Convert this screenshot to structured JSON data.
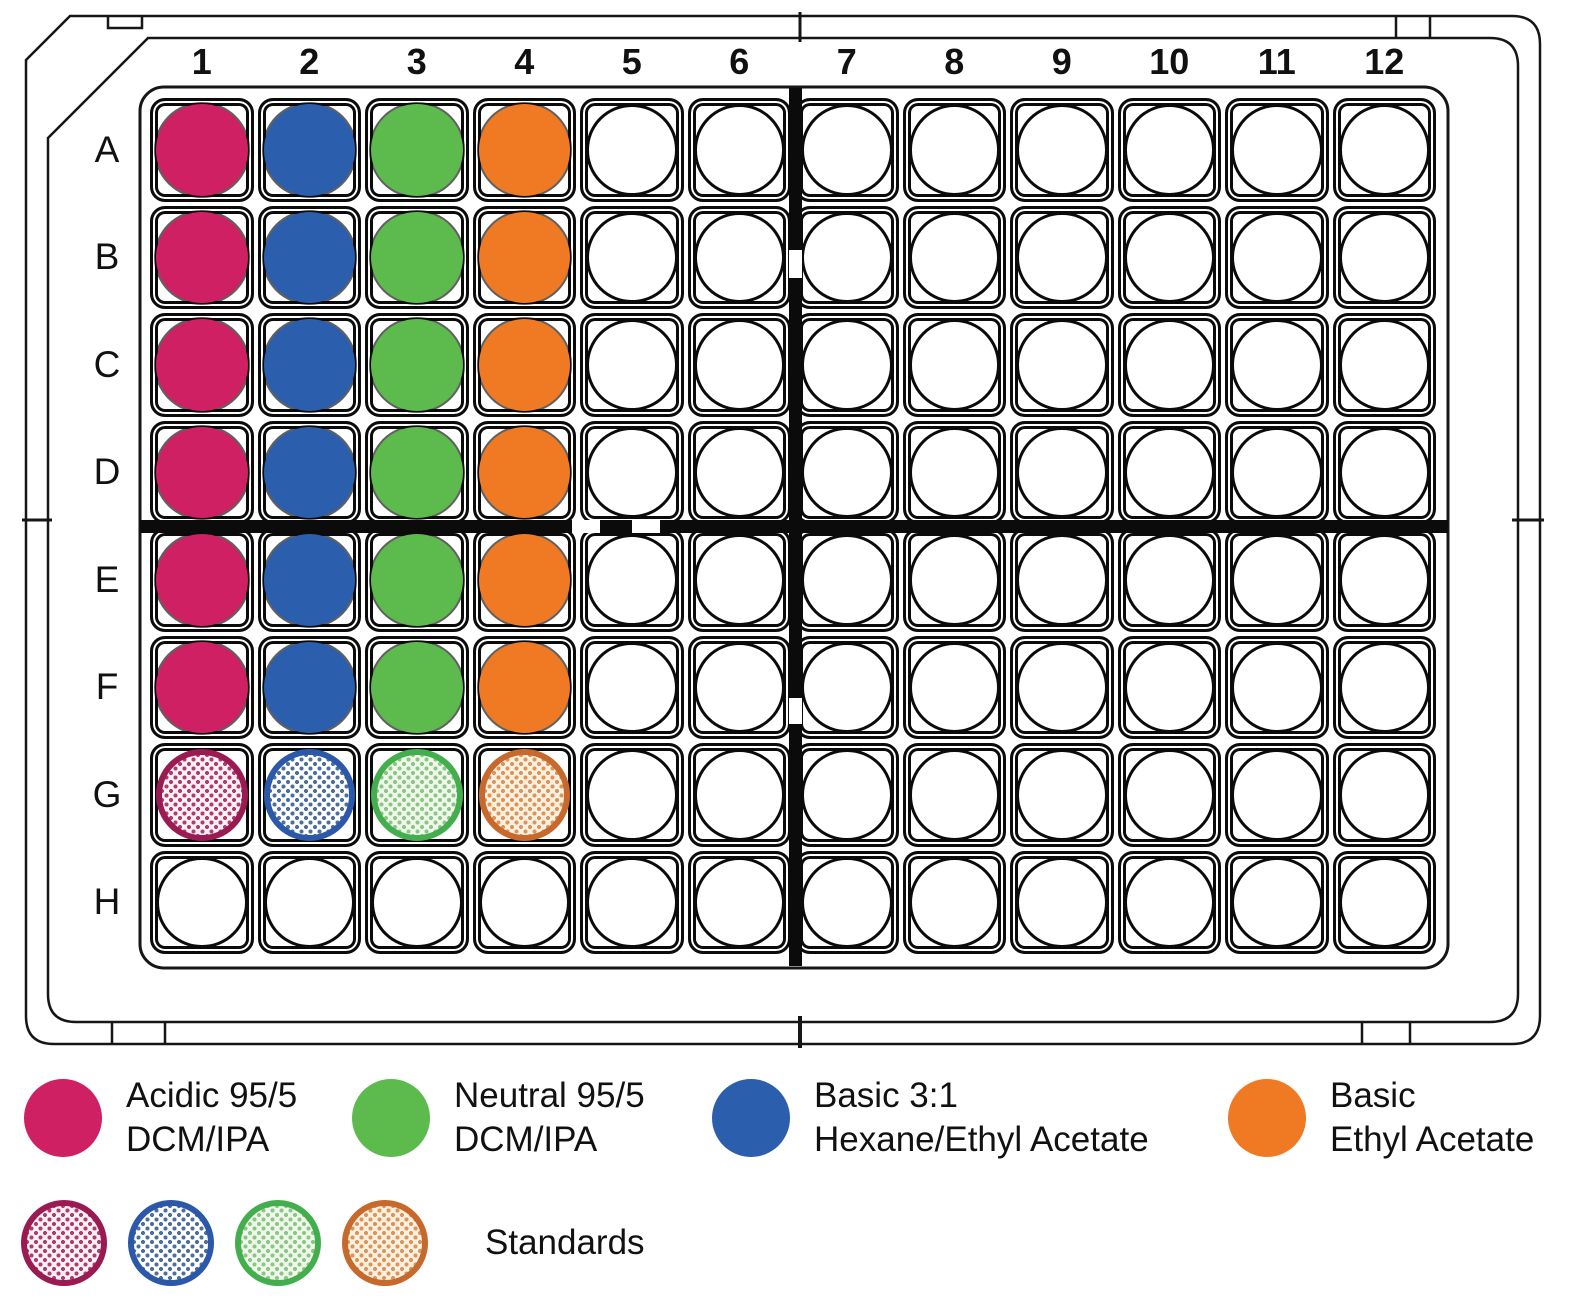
{
  "plate": {
    "columns": [
      "1",
      "2",
      "3",
      "4",
      "5",
      "6",
      "7",
      "8",
      "9",
      "10",
      "11",
      "12"
    ],
    "rows": [
      "A",
      "B",
      "C",
      "D",
      "E",
      "F",
      "G",
      "H"
    ],
    "well_fills": [
      {
        "rows": [
          "A",
          "B",
          "C",
          "D",
          "E",
          "F"
        ],
        "cols": [
          "1"
        ],
        "style": "solid",
        "color_key": "acidic"
      },
      {
        "rows": [
          "A",
          "B",
          "C",
          "D",
          "E",
          "F"
        ],
        "cols": [
          "2"
        ],
        "style": "solid",
        "color_key": "basic_hexane"
      },
      {
        "rows": [
          "A",
          "B",
          "C",
          "D",
          "E",
          "F"
        ],
        "cols": [
          "3"
        ],
        "style": "solid",
        "color_key": "neutral"
      },
      {
        "rows": [
          "A",
          "B",
          "C",
          "D",
          "E",
          "F"
        ],
        "cols": [
          "4"
        ],
        "style": "solid",
        "color_key": "basic_ethyl"
      },
      {
        "rows": [
          "G"
        ],
        "cols": [
          "1"
        ],
        "style": "hatched",
        "color_key": "acidic"
      },
      {
        "rows": [
          "G"
        ],
        "cols": [
          "2"
        ],
        "style": "hatched",
        "color_key": "basic_hexane"
      },
      {
        "rows": [
          "G"
        ],
        "cols": [
          "3"
        ],
        "style": "hatched",
        "color_key": "neutral"
      },
      {
        "rows": [
          "G"
        ],
        "cols": [
          "4"
        ],
        "style": "hatched",
        "color_key": "basic_ethyl"
      }
    ]
  },
  "colors": {
    "acidic": {
      "solid": "#CE2063",
      "ring": "#9A1A52",
      "dot": "#AD3E6C",
      "tint": "#FCF0F5"
    },
    "neutral": {
      "solid": "#5CBB4C",
      "ring": "#43AE4D",
      "dot": "#8BC784",
      "tint": "#EFF7EA"
    },
    "basic_hexane": {
      "solid": "#2C5EAE",
      "ring": "#2B58A8",
      "dot": "#4C6F9E",
      "tint": "#FFFFFF"
    },
    "basic_ethyl": {
      "solid": "#EF7A23",
      "ring": "#C7692C",
      "dot": "#DC9459",
      "tint": "#FAF0E0"
    }
  },
  "legend": {
    "items": [
      {
        "color_key": "acidic",
        "lines": [
          "Acidic 95/5",
          "DCM/IPA"
        ]
      },
      {
        "color_key": "neutral",
        "lines": [
          "Neutral 95/5",
          "DCM/IPA"
        ]
      },
      {
        "color_key": "basic_hexane",
        "lines": [
          "Basic 3:1",
          "Hexane/Ethyl Acetate"
        ]
      },
      {
        "color_key": "basic_ethyl",
        "lines": [
          "Basic",
          "Ethyl Acetate"
        ]
      }
    ],
    "standards": {
      "swatches": [
        "acidic",
        "basic_hexane",
        "neutral",
        "basic_ethyl"
      ],
      "label": "Standards"
    }
  }
}
